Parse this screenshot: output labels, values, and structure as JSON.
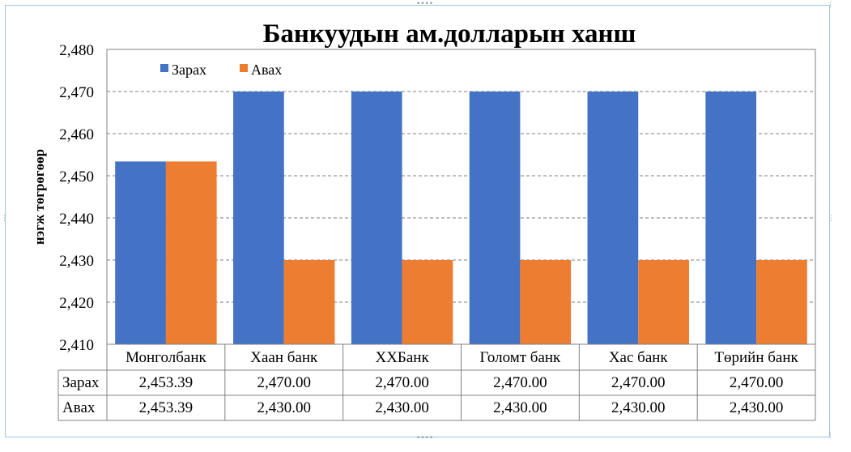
{
  "chart_data": {
    "type": "bar",
    "title": "Банкуудын ам.долларын ханш",
    "ylabel": "нэгж төгрөгөөр",
    "xlabel": "",
    "ylim": [
      2410,
      2480
    ],
    "yticks": [
      2410,
      2420,
      2430,
      2440,
      2450,
      2460,
      2470,
      2480
    ],
    "ytick_labels": [
      "2,410",
      "2,420",
      "2,430",
      "2,440",
      "2,450",
      "2,460",
      "2,470",
      "2,480"
    ],
    "grid": "horizontal-dashed",
    "legend": "top-left",
    "categories": [
      "Монголбанк",
      "Хаан банк",
      "ХХБанк",
      "Голомт банк",
      "Хас банк",
      "Төрийн банк"
    ],
    "series": [
      {
        "name": "Зарах",
        "color": "#4472c4",
        "values": [
          2453.39,
          2470.0,
          2470.0,
          2470.0,
          2470.0,
          2470.0
        ],
        "labels": [
          "2,453.39",
          "2,470.00",
          "2,470.00",
          "2,470.00",
          "2,470.00",
          "2,470.00"
        ]
      },
      {
        "name": "Авах",
        "color": "#ed7d31",
        "values": [
          2453.39,
          2430.0,
          2430.0,
          2430.0,
          2430.0,
          2430.0
        ],
        "labels": [
          "2,453.39",
          "2,430.00",
          "2,430.00",
          "2,430.00",
          "2,430.00",
          "2,430.00"
        ]
      }
    ],
    "data_table": true
  }
}
